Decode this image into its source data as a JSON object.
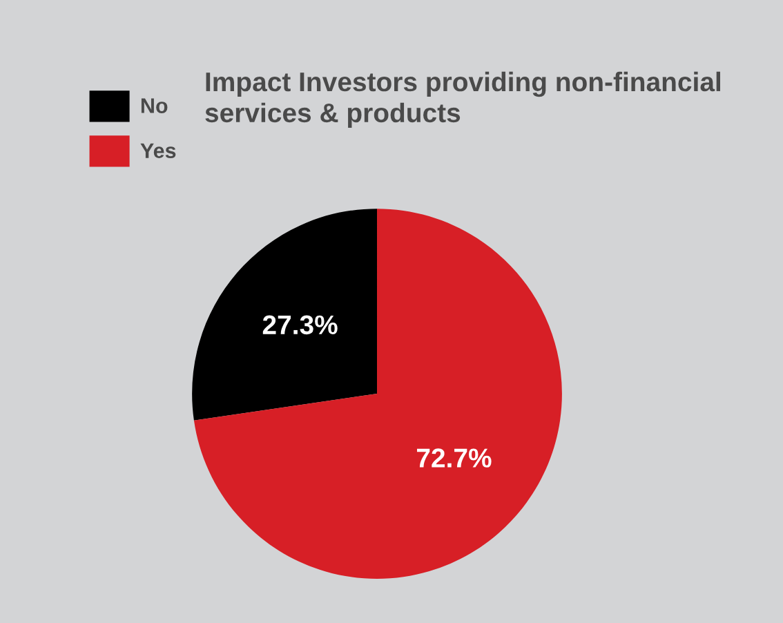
{
  "chart_data": {
    "type": "pie",
    "title": "Impact Investors providing non-financial\nservices & products",
    "categories": [
      "No",
      "Yes"
    ],
    "values": [
      27.3,
      72.7
    ],
    "colors": [
      "#000000",
      "#d71f26"
    ],
    "value_labels": [
      "27.3%",
      "72.7%"
    ],
    "legend": "top left"
  }
}
